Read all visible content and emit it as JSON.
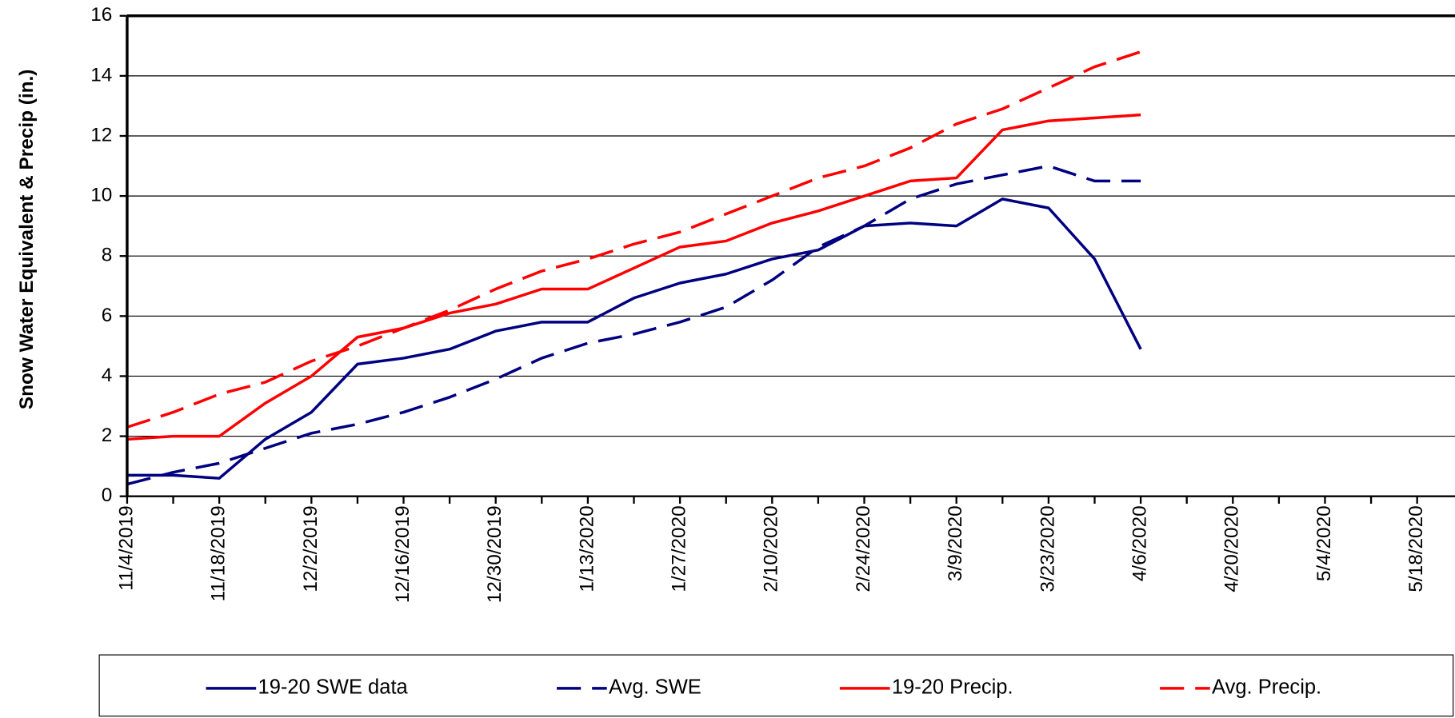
{
  "chart_data": {
    "type": "line",
    "y_label": "Snow Water Equivalent & Precip (in.)",
    "categories": [
      "11/4/2019",
      null,
      "11/18/2019",
      null,
      "12/2/2019",
      null,
      "12/16/2019",
      null,
      "12/30/2019",
      null,
      "1/13/2020",
      null,
      "1/27/2020",
      null,
      "2/10/2020",
      null,
      "2/24/2020",
      null,
      "3/9/2020",
      null,
      "3/23/2020",
      null,
      "4/6/2020",
      null,
      "4/20/2020",
      null,
      "5/4/2020",
      null,
      "5/18/2020"
    ],
    "ylim": [
      0,
      16
    ],
    "yticks": [
      0,
      2,
      4,
      6,
      8,
      10,
      12,
      14,
      16
    ],
    "grid": true,
    "series": [
      {
        "name": "19-20 SWE data",
        "color": "#000080",
        "dashed": false,
        "values": [
          0.7,
          0.7,
          0.6,
          1.9,
          2.8,
          4.4,
          4.6,
          4.9,
          5.5,
          5.8,
          5.8,
          6.6,
          7.1,
          7.4,
          7.9,
          8.2,
          9.0,
          9.1,
          9.0,
          9.9,
          9.6,
          7.9,
          4.9,
          null,
          null,
          null,
          null,
          null,
          null
        ]
      },
      {
        "name": "Avg. SWE",
        "color": "#000080",
        "dashed": true,
        "values": [
          0.4,
          0.8,
          1.1,
          1.6,
          2.1,
          2.4,
          2.8,
          3.3,
          3.9,
          4.6,
          5.1,
          5.4,
          5.8,
          6.3,
          7.2,
          8.3,
          9.0,
          9.9,
          10.4,
          10.7,
          11.0,
          10.5,
          10.5,
          null,
          null,
          null,
          null,
          null,
          null
        ]
      },
      {
        "name": "19-20 Precip.",
        "color": "#ff0000",
        "dashed": false,
        "values": [
          1.9,
          2.0,
          2.0,
          3.1,
          4.0,
          5.3,
          5.6,
          6.1,
          6.4,
          6.9,
          6.9,
          7.6,
          8.3,
          8.5,
          9.1,
          9.5,
          10.0,
          10.5,
          10.6,
          12.2,
          12.5,
          12.6,
          12.7,
          null,
          null,
          null,
          null,
          null,
          null
        ]
      },
      {
        "name": "Avg. Precip.",
        "color": "#ff0000",
        "dashed": true,
        "values": [
          2.3,
          2.8,
          3.4,
          3.8,
          4.5,
          5.0,
          5.6,
          6.2,
          6.9,
          7.5,
          7.9,
          8.4,
          8.8,
          9.4,
          10.0,
          10.6,
          11.0,
          11.6,
          12.4,
          12.9,
          13.6,
          14.3,
          14.8,
          null,
          null,
          null,
          null,
          null,
          null
        ]
      }
    ],
    "legend": "bottom"
  }
}
